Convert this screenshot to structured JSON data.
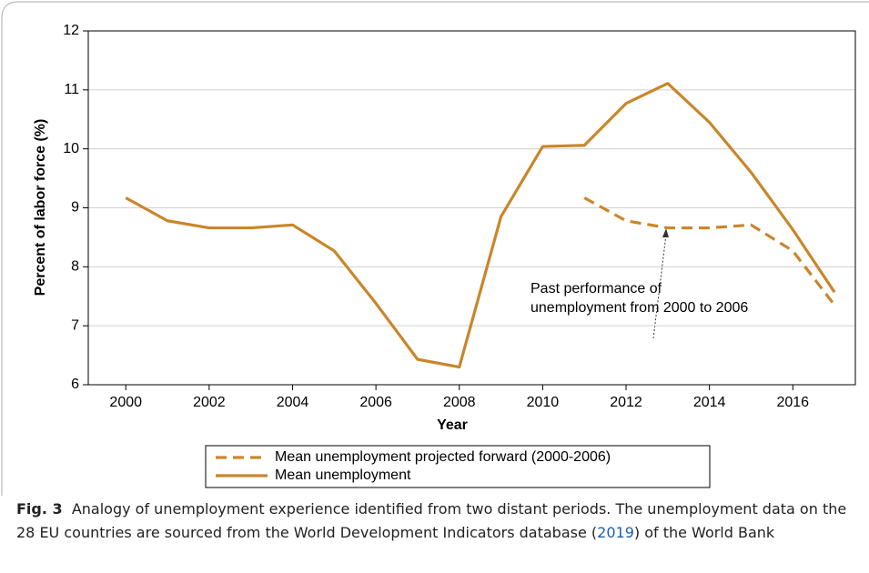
{
  "chart_data": {
    "type": "line",
    "xlabel": "Year",
    "ylabel": "Percent of labor force (%)",
    "x": [
      2000,
      2001,
      2002,
      2003,
      2004,
      2005,
      2006,
      2007,
      2008,
      2009,
      2010,
      2011,
      2012,
      2013,
      2014,
      2015,
      2016,
      2017
    ],
    "series": [
      {
        "name": "Mean unemployment projected forward (2000-2006)",
        "color": "#c9862a",
        "dash": true,
        "values": [
          null,
          null,
          null,
          null,
          null,
          null,
          null,
          null,
          null,
          null,
          null,
          9.17,
          8.78,
          8.66,
          8.66,
          8.71,
          8.27,
          7.35
        ]
      },
      {
        "name": "Mean unemployment",
        "color": "#c9862a",
        "dash": false,
        "values": [
          9.17,
          8.78,
          8.66,
          8.66,
          8.71,
          8.27,
          7.38,
          6.43,
          6.3,
          8.85,
          10.04,
          10.06,
          10.77,
          11.11,
          10.45,
          9.6,
          8.63,
          7.57
        ]
      }
    ],
    "xlim": [
      1999.1,
      2017.5
    ],
    "xticks": [
      2000,
      2002,
      2004,
      2006,
      2008,
      2010,
      2012,
      2014,
      2016
    ],
    "ylim": [
      6,
      12
    ],
    "yticks": [
      6,
      7,
      8,
      9,
      10,
      11,
      12
    ],
    "grid": true,
    "annotation": [
      "Past performance of",
      "unemployment from 2000 to 2006"
    ]
  },
  "caption": {
    "label": "Fig. 3",
    "text_before": "Analogy of unemployment experience identified from two distant periods. The unemployment data on the 28 EU countries are sourced from the World Development Indicators database (",
    "link": "2019",
    "text_after": ") of the World Bank"
  }
}
